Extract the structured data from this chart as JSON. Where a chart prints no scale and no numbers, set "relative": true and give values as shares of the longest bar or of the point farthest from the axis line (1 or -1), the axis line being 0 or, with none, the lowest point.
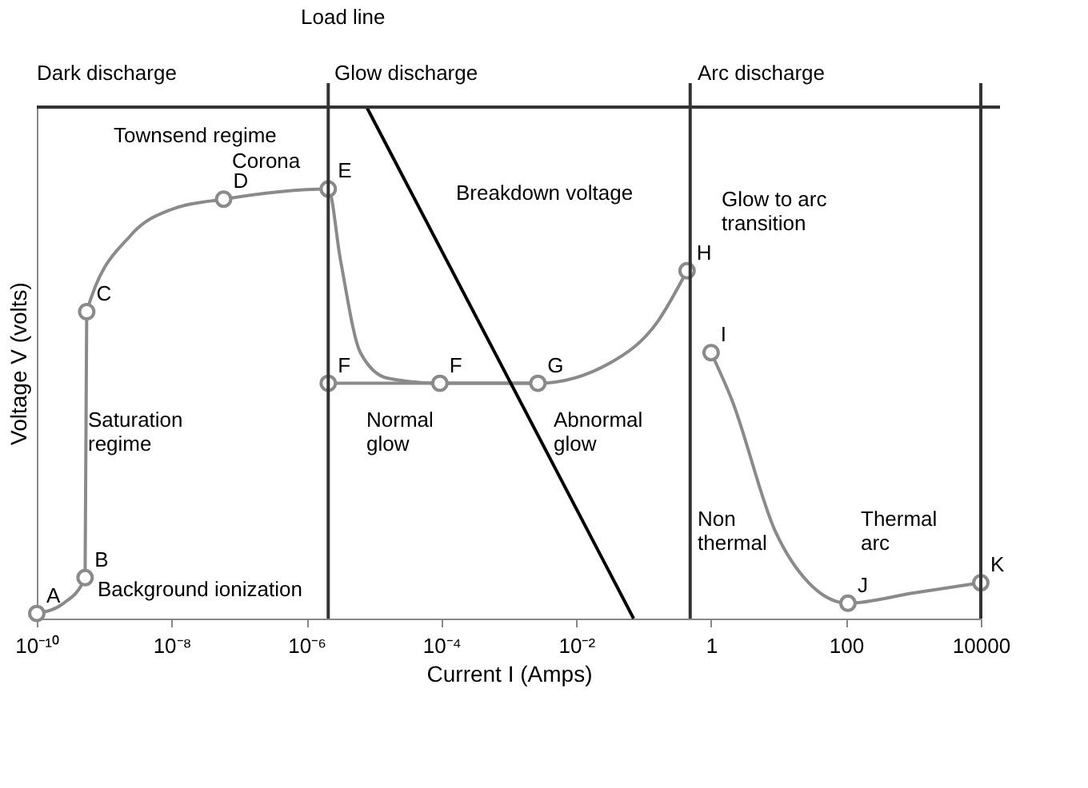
{
  "chart_data": {
    "type": "line",
    "relative": true,
    "xlabel": "Current I (Amps)",
    "ylabel": "Voltage V (volts)",
    "log": "x",
    "xlim": [
      1e-10,
      10000
    ],
    "xticks": [
      {
        "value": 1e-10,
        "label": "10⁻¹⁰"
      },
      {
        "value": 1e-08,
        "label": "10⁻⁸"
      },
      {
        "value": 1e-06,
        "label": "10⁻⁶"
      },
      {
        "value": 0.0001,
        "label": "10⁻⁴"
      },
      {
        "value": 0.01,
        "label": "10⁻²"
      },
      1,
      100,
      {
        "value": 10000,
        "label": "10000"
      }
    ],
    "tick_labels": "x",
    "grid": false,
    "line_style": "solid",
    "series": [
      {
        "color": "#8a8a8a",
        "x": [
          1e-10,
          2.5e-10,
          5.2e-10,
          5.5e-10,
          2.5e-09,
          1e-08,
          5.9e-08,
          2.1e-06,
          3.2e-06,
          6.3e-06,
          1.6e-05,
          9.5e-05,
          0.0027,
          0.032,
          0.16,
          0.44
        ],
        "values": [
          0.01,
          0.03,
          0.08,
          0.6,
          0.75,
          0.8,
          0.82,
          0.84,
          0.7,
          0.52,
          0.47,
          0.46,
          0.46,
          0.5,
          0.58,
          0.68
        ]
      },
      {
        "color": "#8a8a8a",
        "x": [
          2.1e-06,
          0.0027
        ],
        "values": [
          0.46,
          0.46
        ]
      },
      {
        "color": "#8a8a8a",
        "x": [
          1,
          2,
          9,
          28,
          107,
          1000,
          10000
        ],
        "values": [
          0.52,
          0.43,
          0.17,
          0.07,
          0.03,
          0.05,
          0.07
        ]
      },
      {
        "color": "#000000",
        "x": [
          7.8e-06,
          0.071
        ],
        "values": [
          1,
          0
        ]
      },
      {
        "type": "scatter",
        "marker": "circle",
        "color": "#8a8a8a",
        "x": [
          1e-10,
          5.2e-10,
          5.5e-10,
          5.9e-08,
          2.1e-06,
          2.1e-06,
          9.5e-05,
          0.0027,
          0.44,
          1,
          107,
          10000
        ],
        "values": [
          0.01,
          0.08,
          0.6,
          0.82,
          0.84,
          0.46,
          0.46,
          0.46,
          0.68,
          0.52,
          0.03,
          0.07
        ]
      }
    ],
    "ref_lines": [
      {
        "axis": "x",
        "value": 2.1e-06,
        "color": "#333333"
      },
      {
        "axis": "x",
        "value": 0.49,
        "color": "#333333"
      },
      {
        "axis": "x",
        "value": 10000,
        "color": "#333333"
      },
      {
        "axis": "y",
        "value": 1,
        "color": "#333333"
      }
    ],
    "annotations": [
      "Load line",
      "Dark discharge",
      "Glow discharge",
      "Arc discharge",
      "Townsend regime",
      "Corona",
      "Breakdown voltage",
      "Glow to arc\ntransition",
      "Saturation\nregime",
      "Background ionization",
      "Normal\nglow",
      "Abnormal\nglow",
      "Non\nthermal",
      "Thermal\narc",
      {
        "text": "A",
        "x": 1e-10,
        "y": 0.01
      },
      {
        "text": "B",
        "x": 5.2e-10,
        "y": 0.08
      },
      {
        "text": "C",
        "x": 5.5e-10,
        "y": 0.6
      },
      {
        "text": "D",
        "x": 5.9e-08,
        "y": 0.82
      },
      {
        "text": "E",
        "x": 2.1e-06,
        "y": 0.84
      },
      {
        "text": "F",
        "x": 2.1e-06,
        "y": 0.46
      },
      {
        "text": "F",
        "x": 9.5e-05,
        "y": 0.46
      },
      {
        "text": "G",
        "x": 0.0027,
        "y": 0.46
      },
      {
        "text": "H",
        "x": 0.44,
        "y": 0.68
      },
      {
        "text": "I",
        "x": 1,
        "y": 0.52
      },
      {
        "text": "J",
        "x": 107,
        "y": 0.03
      },
      {
        "text": "K",
        "x": 10000,
        "y": 0.07
      }
    ]
  }
}
